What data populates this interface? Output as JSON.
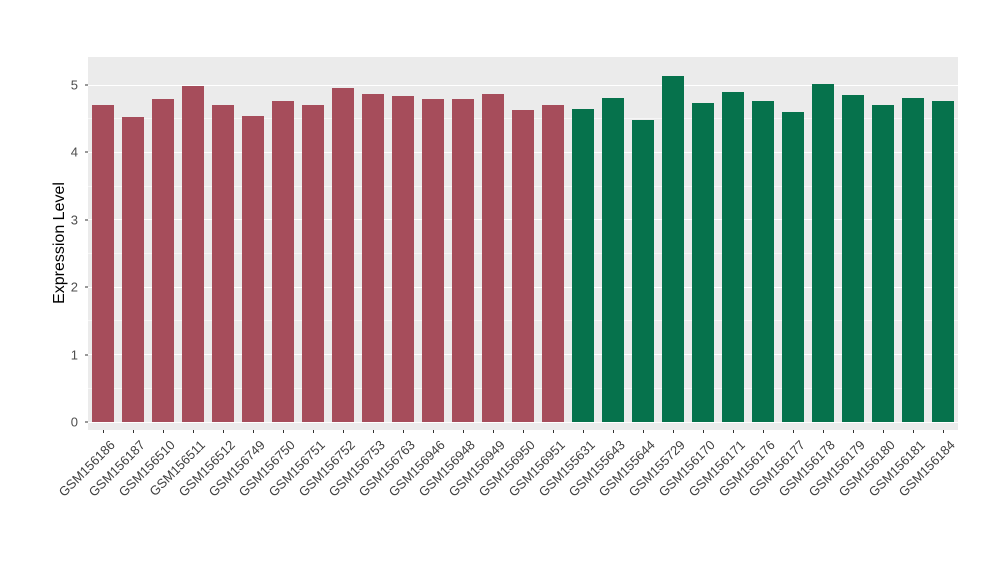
{
  "figure": {
    "background": "#FFFFFF"
  },
  "chart_data": {
    "type": "bar",
    "title": "",
    "xlabel": "",
    "ylabel": "Expression Level",
    "ylim": [
      0,
      5.4
    ],
    "yticks": [
      0,
      1,
      2,
      3,
      4,
      5
    ],
    "yticks_minor": [
      0.5,
      1.5,
      2.5,
      3.5,
      4.5
    ],
    "legend": "none",
    "grid": "horizontal major and minor white gridlines on gray panel",
    "panel_background": "#EBEBEB",
    "gridline_color": "#FFFFFF",
    "axis_text_color": "#4D4D4D",
    "tick_mark_color": "#333333",
    "groups": [
      {
        "name": "group-1-maroon",
        "color": "#A64D5B"
      },
      {
        "name": "group-2-green",
        "color": "#06724C"
      }
    ],
    "categories": [
      "GSM156186",
      "GSM156187",
      "GSM156510",
      "GSM156511",
      "GSM156512",
      "GSM156749",
      "GSM156750",
      "GSM156751",
      "GSM156752",
      "GSM156753",
      "GSM156763",
      "GSM156946",
      "GSM156948",
      "GSM156949",
      "GSM156950",
      "GSM156951",
      "GSM155631",
      "GSM155643",
      "GSM155644",
      "GSM155729",
      "GSM156170",
      "GSM156171",
      "GSM156176",
      "GSM156177",
      "GSM156178",
      "GSM156179",
      "GSM156180",
      "GSM156181",
      "GSM156184"
    ],
    "group_index": [
      0,
      0,
      0,
      0,
      0,
      0,
      0,
      0,
      0,
      0,
      0,
      0,
      0,
      0,
      0,
      0,
      1,
      1,
      1,
      1,
      1,
      1,
      1,
      1,
      1,
      1,
      1,
      1,
      1
    ],
    "values": [
      4.7,
      4.53,
      4.79,
      4.98,
      4.71,
      4.54,
      4.77,
      4.71,
      4.96,
      4.86,
      4.83,
      4.79,
      4.79,
      4.86,
      4.63,
      4.7,
      4.64,
      4.8,
      4.48,
      5.14,
      4.74,
      4.89,
      4.76,
      4.6,
      5.01,
      4.85,
      4.71,
      4.81,
      4.77
    ]
  }
}
